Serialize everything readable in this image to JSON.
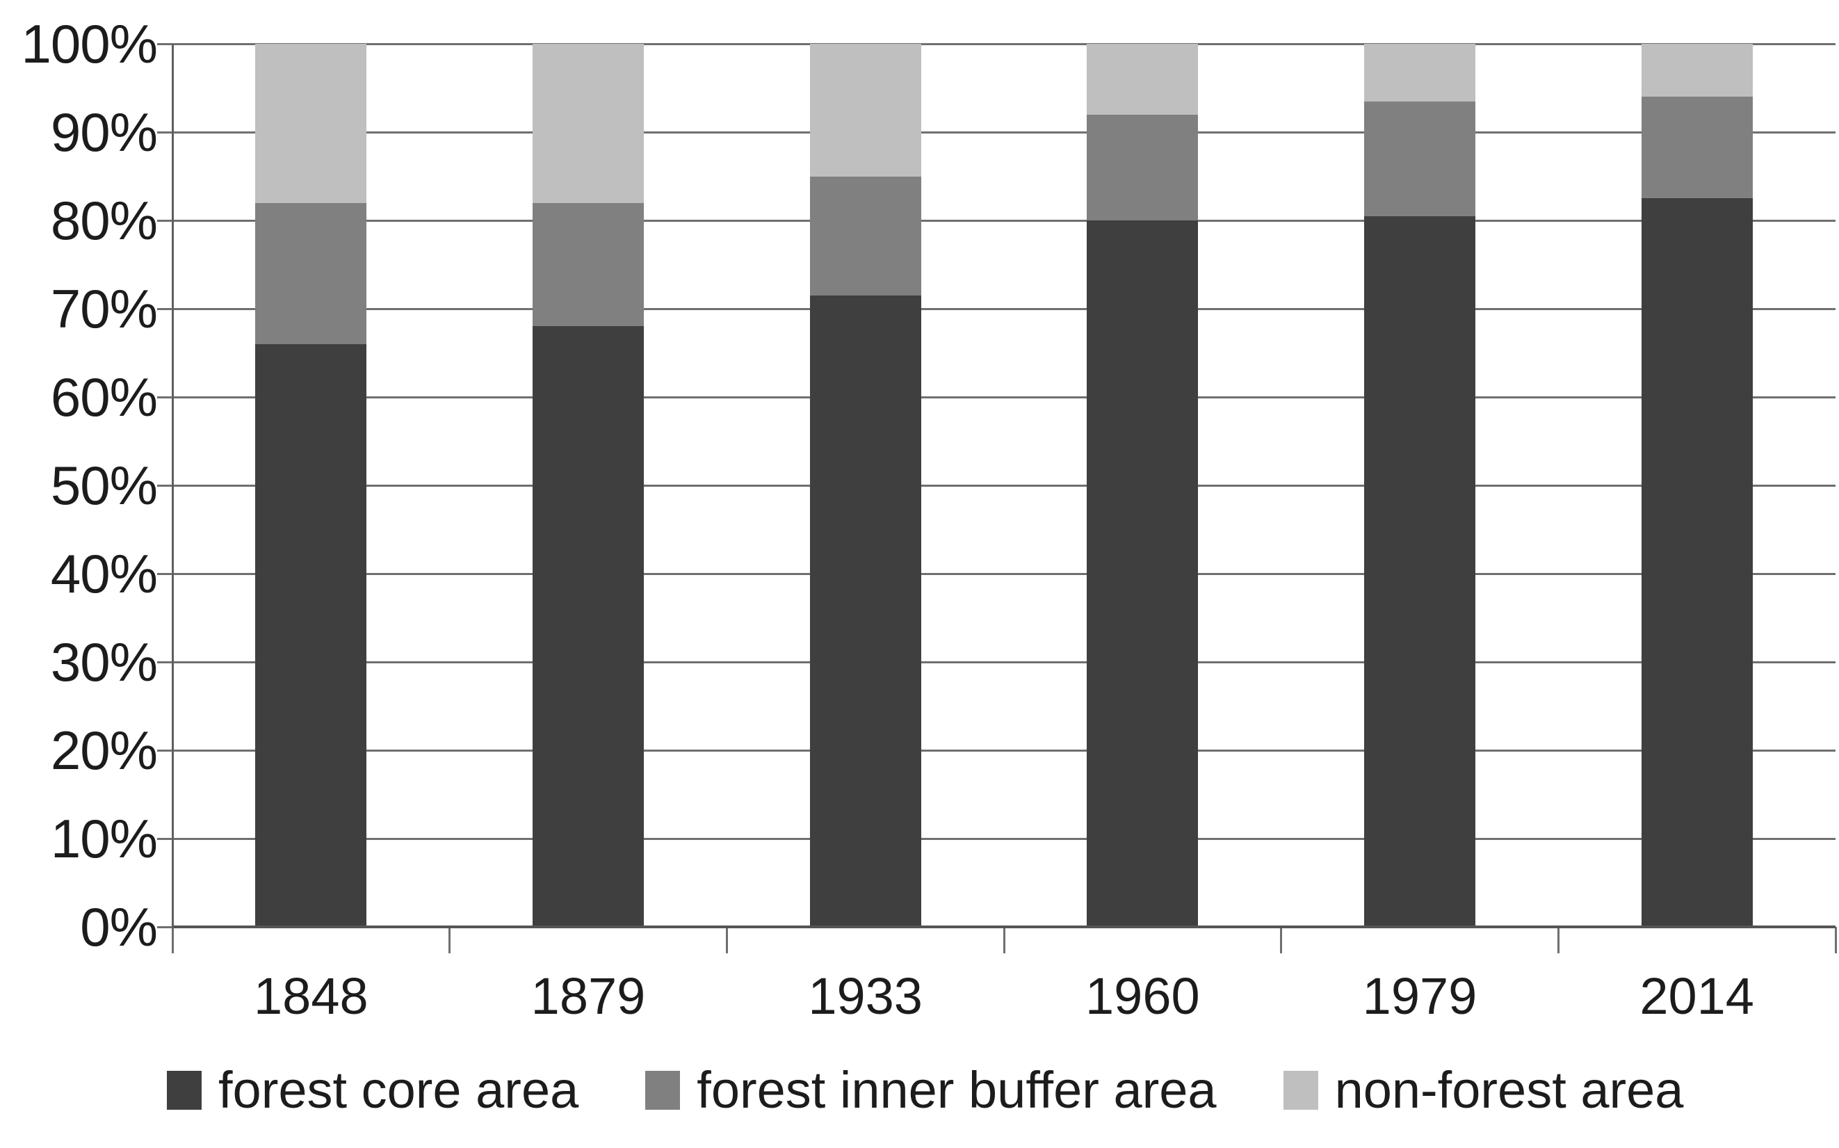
{
  "chart_data": {
    "type": "bar",
    "stacked": true,
    "percent_stacked": true,
    "title": "",
    "xlabel": "",
    "ylabel": "",
    "categories": [
      "1848",
      "1879",
      "1933",
      "1960",
      "1979",
      "2014"
    ],
    "series": [
      {
        "name": "forest core area",
        "color": "#3f3f3f",
        "values": [
          66,
          68,
          71.5,
          80,
          80.5,
          82.5
        ]
      },
      {
        "name": "forest inner buffer area",
        "color": "#808080",
        "values": [
          16,
          14,
          13.5,
          12,
          13,
          11.5
        ]
      },
      {
        "name": "non-forest area",
        "color": "#bfbfbf",
        "values": [
          18,
          18,
          15,
          8,
          6.5,
          6
        ]
      }
    ],
    "yaxis": {
      "min": 0,
      "max": 100,
      "tick_step": 10,
      "tick_labels": [
        "0%",
        "10%",
        "20%",
        "30%",
        "40%",
        "50%",
        "60%",
        "70%",
        "80%",
        "90%",
        "100%"
      ]
    },
    "grid": true,
    "legend_position": "bottom"
  },
  "colors": {
    "gridline": "#6f6f6f",
    "axis": "#5f5f5f",
    "text": "#1c1c1c",
    "background": "#ffffff"
  }
}
